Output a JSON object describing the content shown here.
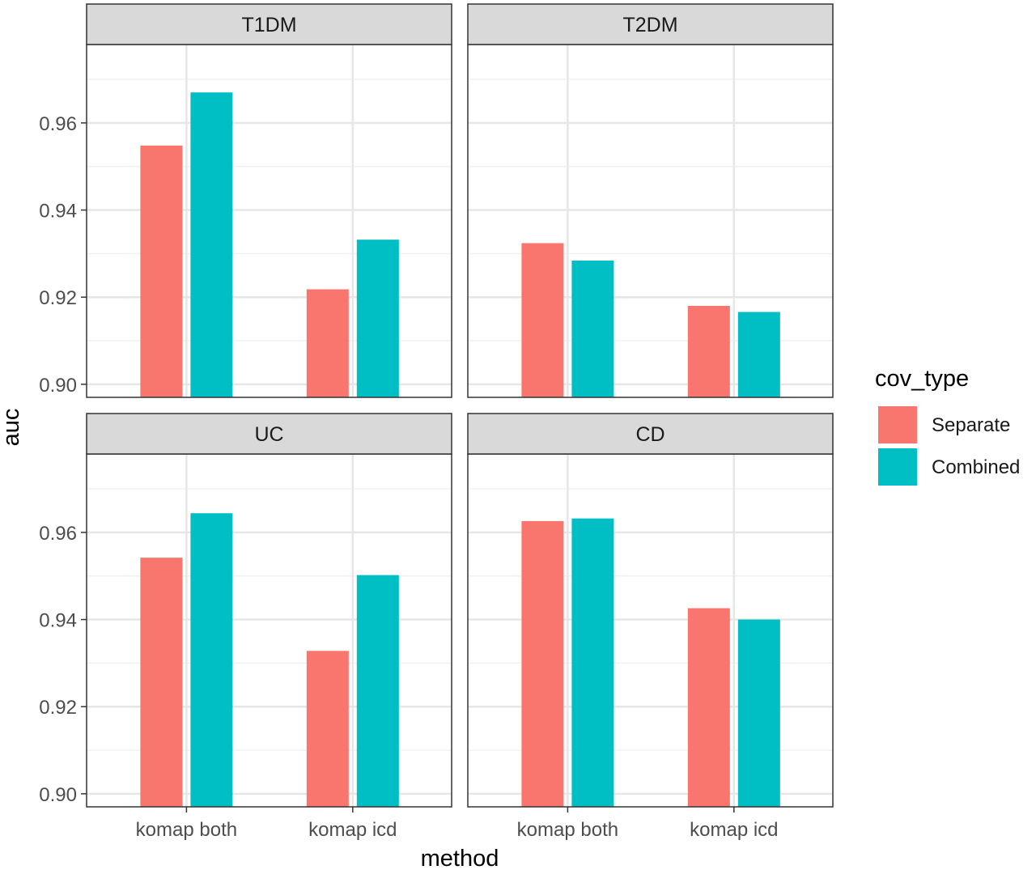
{
  "chart_data": {
    "type": "bar",
    "layout": "facet-grid-2x2",
    "xlabel": "method",
    "ylabel": "auc",
    "categories": [
      "komap both",
      "komap icd"
    ],
    "ylim": [
      0.897,
      0.978
    ],
    "yticks": [
      0.9,
      0.92,
      0.94,
      0.96
    ],
    "ytick_labels": [
      "0.90",
      "0.92",
      "0.94",
      "0.96"
    ],
    "grid": true,
    "legend": {
      "title": "cov_type",
      "position": "right",
      "entries": [
        {
          "name": "Separate",
          "color": "#F8766D"
        },
        {
          "name": "Combined",
          "color": "#00BFC4"
        }
      ]
    },
    "facets": [
      {
        "title": "T1DM",
        "series": [
          {
            "name": "Separate",
            "values": [
              0.9548,
              0.9218
            ]
          },
          {
            "name": "Combined",
            "values": [
              0.967,
              0.9332
            ]
          }
        ]
      },
      {
        "title": "T2DM",
        "series": [
          {
            "name": "Separate",
            "values": [
              0.9324,
              0.918
            ]
          },
          {
            "name": "Combined",
            "values": [
              0.9284,
              0.9166
            ]
          }
        ]
      },
      {
        "title": "UC",
        "series": [
          {
            "name": "Separate",
            "values": [
              0.9542,
              0.9328
            ]
          },
          {
            "name": "Combined",
            "values": [
              0.9644,
              0.9502
            ]
          }
        ]
      },
      {
        "title": "CD",
        "series": [
          {
            "name": "Separate",
            "values": [
              0.9626,
              0.9426
            ]
          },
          {
            "name": "Combined",
            "values": [
              0.9632,
              0.94
            ]
          }
        ]
      }
    ]
  }
}
